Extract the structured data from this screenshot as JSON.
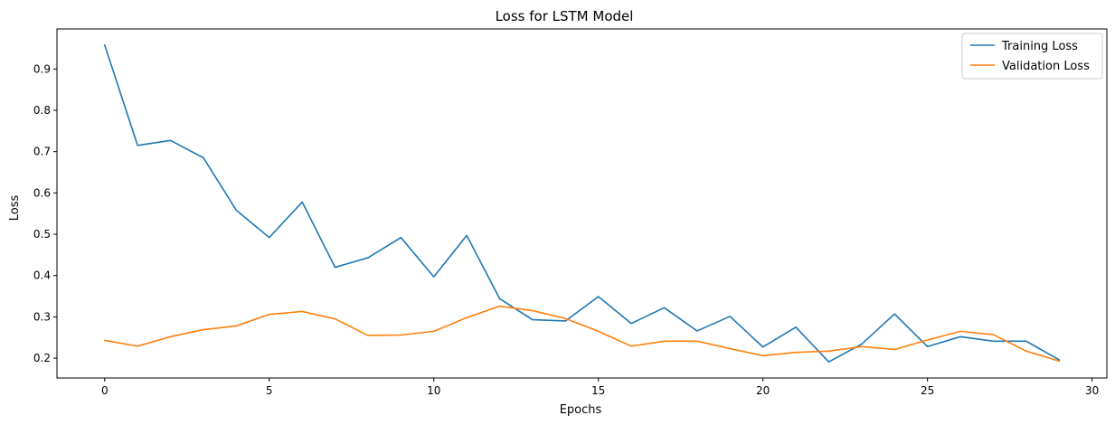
{
  "chart_data": {
    "type": "line",
    "title": "Loss for LSTM Model",
    "xlabel": "Epochs",
    "ylabel": "Loss",
    "xlim": [
      -1.45,
      30.45
    ],
    "ylim": [
      0.152,
      0.997
    ],
    "x_ticks": [
      0,
      5,
      10,
      15,
      20,
      25,
      30
    ],
    "y_ticks": [
      0.2,
      0.3,
      0.4,
      0.5,
      0.6,
      0.7,
      0.8,
      0.9
    ],
    "grid": false,
    "legend_position": "top-right",
    "x": [
      0,
      1,
      2,
      3,
      4,
      5,
      6,
      7,
      8,
      9,
      10,
      11,
      12,
      13,
      14,
      15,
      16,
      17,
      18,
      19,
      20,
      21,
      22,
      23,
      24,
      25,
      26,
      27,
      28,
      29
    ],
    "series": [
      {
        "name": "Training Loss",
        "color": "#1f77b4",
        "values": [
          0.958,
          0.715,
          0.727,
          0.685,
          0.558,
          0.492,
          0.578,
          0.42,
          0.443,
          0.492,
          0.397,
          0.497,
          0.344,
          0.293,
          0.29,
          0.349,
          0.284,
          0.322,
          0.266,
          0.301,
          0.227,
          0.275,
          0.191,
          0.234,
          0.307,
          0.228,
          0.252,
          0.241,
          0.241,
          0.196
        ]
      },
      {
        "name": "Validation Loss",
        "color": "#ff7f0e",
        "values": [
          0.243,
          0.229,
          0.252,
          0.269,
          0.278,
          0.306,
          0.313,
          0.295,
          0.255,
          0.256,
          0.265,
          0.298,
          0.326,
          0.315,
          0.296,
          0.265,
          0.229,
          0.241,
          0.241,
          0.223,
          0.206,
          0.214,
          0.217,
          0.228,
          0.221,
          0.244,
          0.265,
          0.257,
          0.217,
          0.193
        ]
      }
    ]
  }
}
